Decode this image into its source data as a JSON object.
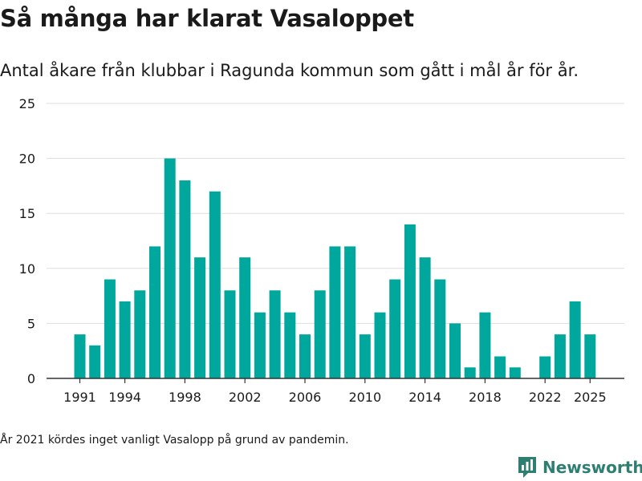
{
  "title": "Så många har klarat Vasaloppet",
  "subtitle": "Antal åkare från klubbar i Ragunda kommun som gått i mål år för år.",
  "footnote": "År 2021 kördes inget vanligt Vasalopp på grund av pandemin.",
  "brand": {
    "name": "Newsworthy",
    "icon": "newsworthy-logo-icon",
    "color": "#2e7f72"
  },
  "colors": {
    "bar": "#00a79d",
    "grid": "#dddddd",
    "axis": "#333333",
    "text": "#1a1a1a"
  },
  "chart_data": {
    "type": "bar",
    "title": "Så många har klarat Vasaloppet",
    "xlabel": "",
    "ylabel": "",
    "ylim": [
      0,
      25
    ],
    "yticks": [
      0,
      5,
      10,
      15,
      20,
      25
    ],
    "xticks": [
      "1991",
      "1994",
      "1998",
      "2002",
      "2006",
      "2010",
      "2014",
      "2018",
      "2022",
      "2025"
    ],
    "grid": true,
    "categories": [
      1991,
      1992,
      1993,
      1994,
      1995,
      1996,
      1997,
      1998,
      1999,
      2000,
      2001,
      2002,
      2003,
      2004,
      2005,
      2006,
      2007,
      2008,
      2009,
      2010,
      2011,
      2012,
      2013,
      2014,
      2015,
      2016,
      2017,
      2018,
      2019,
      2020,
      2021,
      2022,
      2023,
      2024,
      2025
    ],
    "values": [
      4,
      3,
      9,
      7,
      8,
      12,
      20,
      18,
      11,
      17,
      8,
      11,
      6,
      8,
      6,
      4,
      8,
      12,
      12,
      4,
      6,
      9,
      14,
      11,
      9,
      5,
      1,
      6,
      2,
      1,
      null,
      2,
      4,
      7,
      4
    ]
  }
}
